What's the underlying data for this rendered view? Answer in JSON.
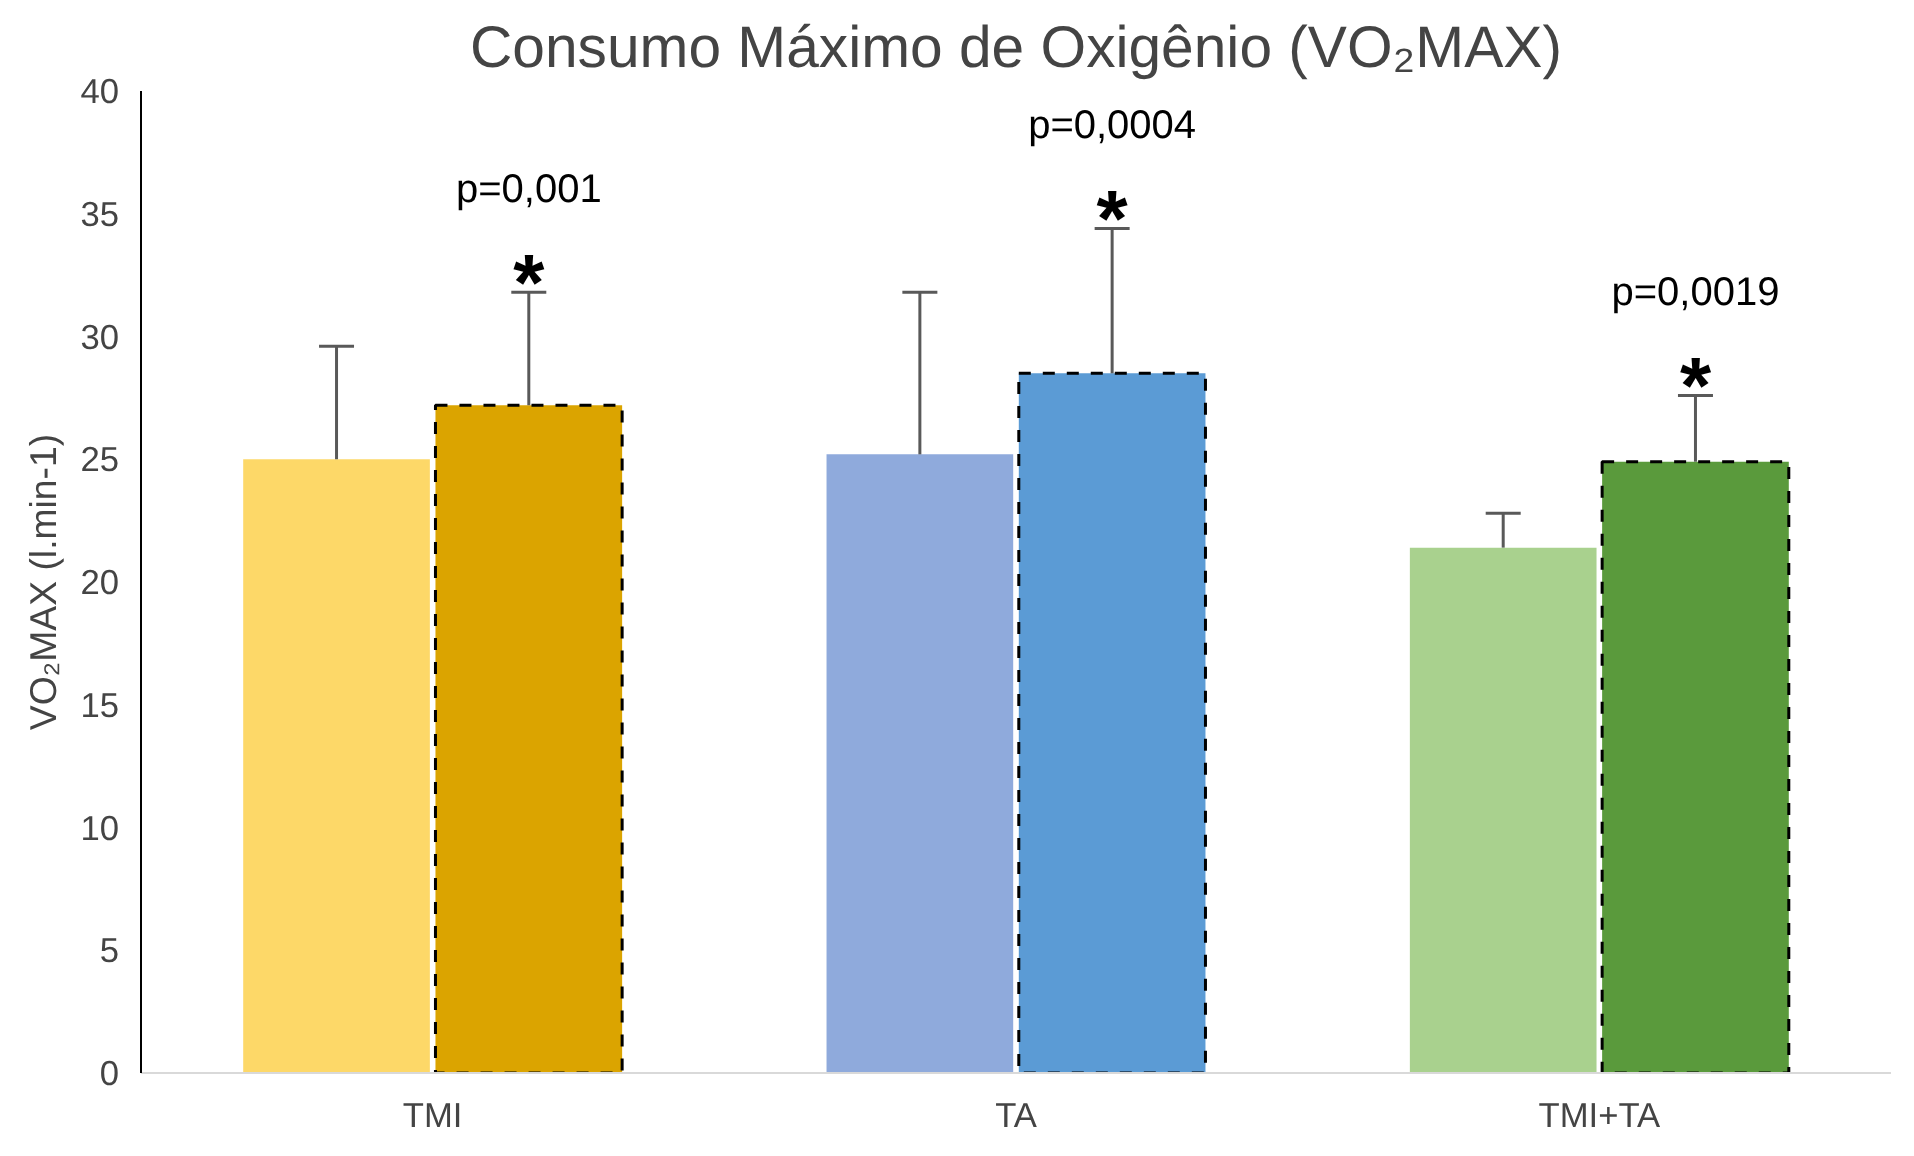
{
  "chart_data": {
    "type": "bar",
    "title": "Consumo Máximo de Oxigênio (VO₂MAX)",
    "ylabel": "VO₂MAX (l.min-1)",
    "categories": [
      "TMI",
      "TA",
      "TMI+TA"
    ],
    "series": [
      {
        "colors": [
          "#fdd868",
          "#8faadc",
          "#a9d18e"
        ],
        "values": [
          25.0,
          25.2,
          21.4
        ],
        "errors": [
          [
            25.0,
            29.6
          ],
          [
            25.2,
            31.8
          ],
          [
            21.4,
            22.8
          ]
        ]
      },
      {
        "colors": [
          "#dba400",
          "#5b9bd5",
          "#5a9a3c"
        ],
        "values": [
          27.2,
          28.5,
          24.9
        ],
        "errors": [
          [
            27.2,
            31.8
          ],
          [
            28.5,
            34.4
          ],
          [
            24.9,
            27.6
          ]
        ],
        "line_style": "dashed"
      }
    ],
    "ylim": [
      0,
      40
    ],
    "yticks": [
      0,
      5,
      10,
      15,
      20,
      25,
      30,
      35,
      40
    ],
    "grid": false,
    "annotations": [
      "p=0,001",
      "*",
      "p=0,0004",
      "*",
      "p=0,0019",
      "*"
    ]
  }
}
